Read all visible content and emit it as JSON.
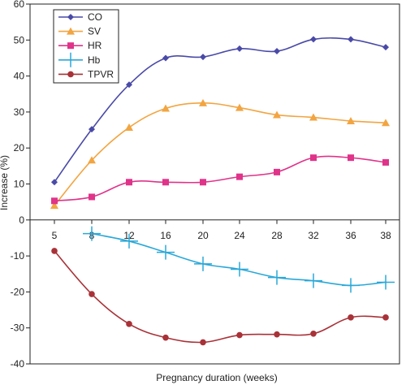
{
  "chart_data": {
    "type": "line",
    "title": "",
    "xlabel": "Pregnancy duration (weeks)",
    "ylabel": "Increase (%)",
    "x": [
      5,
      8,
      12,
      16,
      20,
      24,
      28,
      32,
      36,
      38
    ],
    "ylim": [
      -40,
      60
    ],
    "yticks": [
      -40,
      -30,
      -20,
      -10,
      0,
      10,
      20,
      30,
      40,
      50,
      60
    ],
    "grid": false,
    "legend_position": "top-left",
    "series": [
      {
        "name": "CO",
        "color": "#4a4aa8",
        "marker": "diamond",
        "values": [
          10.5,
          25.2,
          37.6,
          45.0,
          45.3,
          47.6,
          46.9,
          50.2,
          50.2,
          48.0
        ]
      },
      {
        "name": "SV",
        "color": "#f2a541",
        "marker": "triangle",
        "values": [
          4.0,
          16.6,
          25.7,
          31.0,
          32.5,
          31.2,
          29.2,
          28.5,
          27.5,
          27.0
        ]
      },
      {
        "name": "HR",
        "color": "#e0338a",
        "marker": "square",
        "values": [
          5.3,
          6.4,
          10.5,
          10.5,
          10.5,
          12.0,
          13.3,
          17.3,
          17.3,
          16.0
        ]
      },
      {
        "name": "Hb",
        "color": "#2aa8d8",
        "marker": "plus",
        "values": [
          null,
          -3.8,
          -5.9,
          -9.0,
          -12.2,
          -13.7,
          -16.0,
          -16.9,
          -18.2,
          -17.3
        ]
      },
      {
        "name": "TPVR",
        "color": "#a83238",
        "marker": "circle",
        "values": [
          -8.6,
          -20.6,
          -28.9,
          -32.7,
          -34.0,
          -32.0,
          -31.8,
          -31.6,
          -27.1,
          -27.1
        ]
      }
    ]
  }
}
